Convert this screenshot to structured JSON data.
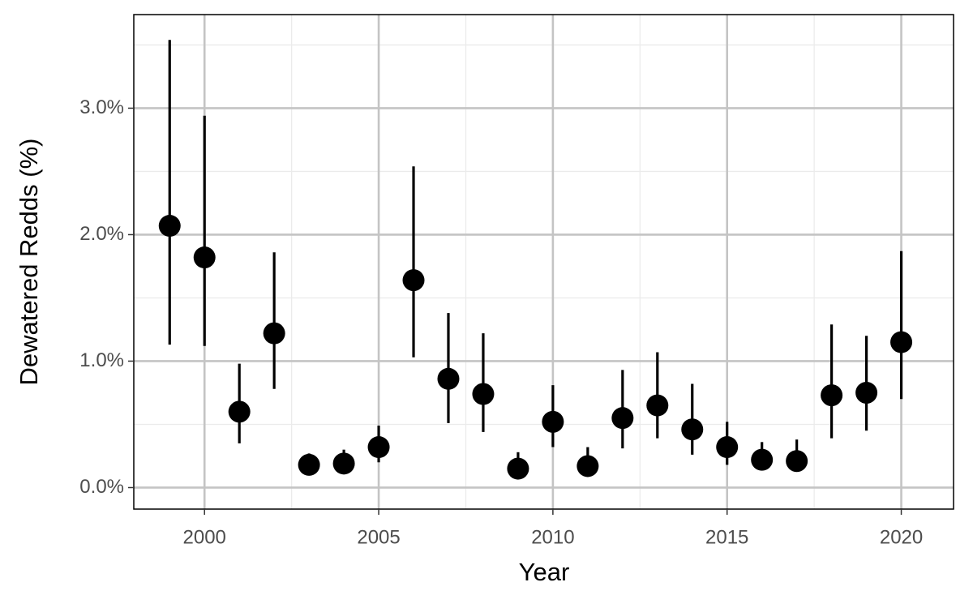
{
  "chart_data": {
    "type": "errorbar",
    "x_label": "Year",
    "y_label": "Dewatered Redds (%)",
    "x": [
      1999,
      2000,
      2001,
      2002,
      2003,
      2004,
      2005,
      2006,
      2007,
      2008,
      2009,
      2010,
      2011,
      2012,
      2013,
      2014,
      2015,
      2016,
      2017,
      2018,
      2019,
      2020
    ],
    "series": [
      {
        "color": "#000000",
        "values": [
          2.07,
          1.82,
          0.6,
          1.22,
          0.18,
          0.19,
          0.32,
          1.64,
          0.86,
          0.74,
          0.15,
          0.52,
          0.17,
          0.55,
          0.65,
          0.46,
          0.32,
          0.22,
          0.21,
          0.73,
          0.75,
          1.15
        ],
        "lower": [
          1.13,
          1.12,
          0.35,
          0.78,
          0.12,
          0.12,
          0.2,
          1.03,
          0.51,
          0.44,
          0.09,
          0.32,
          0.1,
          0.31,
          0.39,
          0.26,
          0.18,
          0.14,
          0.14,
          0.39,
          0.45,
          0.7
        ],
        "upper": [
          3.54,
          2.94,
          0.98,
          1.86,
          0.27,
          0.3,
          0.49,
          2.54,
          1.38,
          1.22,
          0.28,
          0.81,
          0.32,
          0.93,
          1.07,
          0.82,
          0.52,
          0.36,
          0.38,
          1.29,
          1.2,
          1.87
        ]
      }
    ],
    "xlim": [
      1997.97,
      2021.5
    ],
    "ylim": [
      -0.17,
      3.74
    ],
    "xticks": [
      2000,
      2005,
      2010,
      2015,
      2020
    ],
    "yticks": [
      {
        "value": 0,
        "label": "0.0%"
      },
      {
        "value": 1,
        "label": "1.0%"
      },
      {
        "value": 2,
        "label": "2.0%"
      },
      {
        "value": 3,
        "label": "3.0%"
      }
    ],
    "x_minor_ticks": [
      2002.5,
      2007.5,
      2012.5,
      2017.5
    ],
    "y_minor_ticks": [
      0.5,
      1.5,
      2.5,
      3.5
    ],
    "grid": true
  }
}
